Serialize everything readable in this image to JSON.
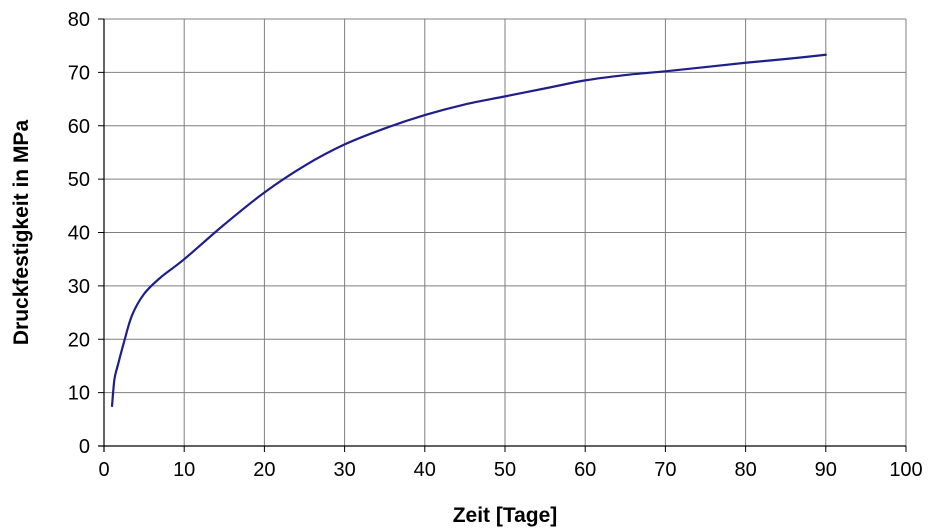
{
  "chart_data": {
    "type": "line",
    "xlabel": "Zeit [Tage]",
    "ylabel": "Druckfestigkeit in MPa",
    "xlim": [
      0,
      100
    ],
    "ylim": [
      0,
      80
    ],
    "x_ticks": [
      0,
      10,
      20,
      30,
      40,
      50,
      60,
      70,
      80,
      90,
      100
    ],
    "y_ticks": [
      0,
      10,
      20,
      30,
      40,
      50,
      60,
      70,
      80
    ],
    "grid": true,
    "legend": "none",
    "colors": {
      "line": "#1f1f8c",
      "grid": "#7f7f7f",
      "axis": "#000000"
    },
    "series": [
      {
        "x": [
          1,
          1.3,
          1.7,
          2.5,
          3.5,
          5,
          7,
          10,
          15,
          20,
          25,
          30,
          35,
          40,
          45,
          50,
          55,
          60,
          65,
          70,
          75,
          80,
          85,
          90
        ],
        "y": [
          7.5,
          12.5,
          15,
          19.5,
          24.5,
          28.5,
          31.5,
          35,
          41.5,
          47.5,
          52.5,
          56.5,
          59.5,
          62,
          64,
          65.5,
          67,
          68.5,
          69.5,
          70.2,
          71,
          71.8,
          72.5,
          73.3
        ]
      }
    ]
  }
}
